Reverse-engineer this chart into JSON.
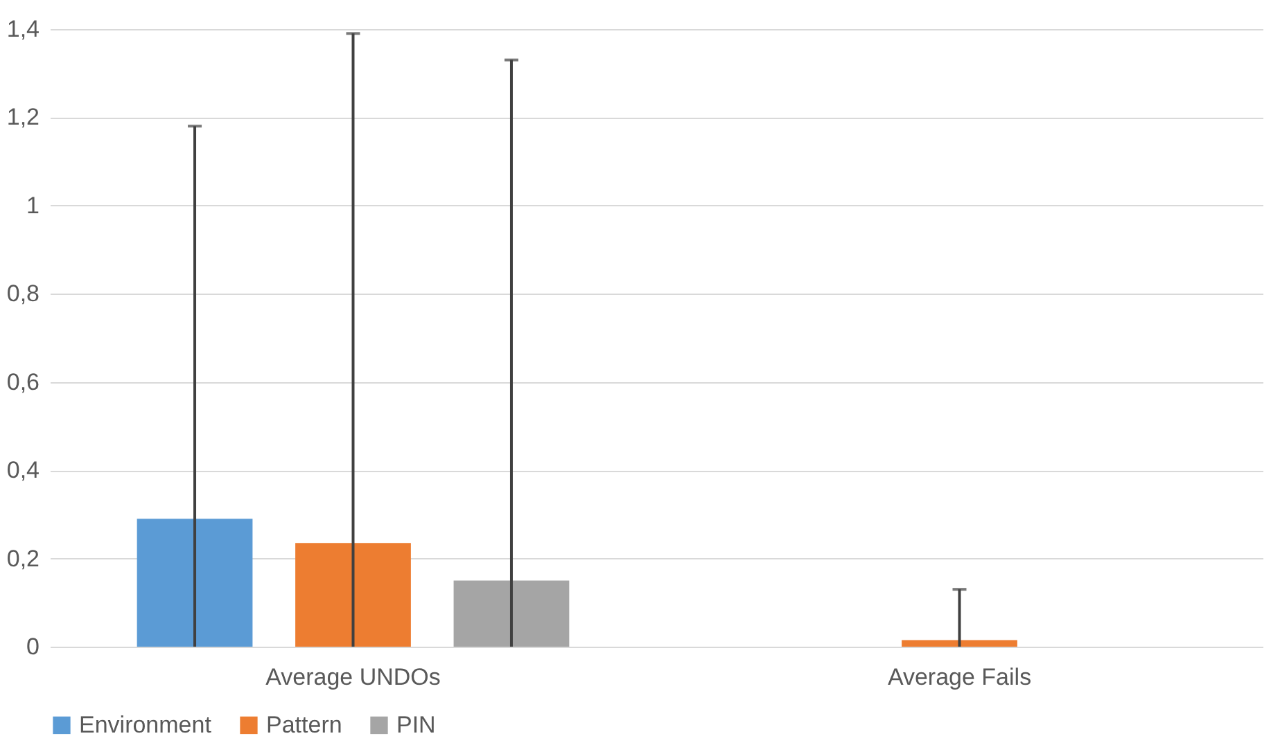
{
  "chart_data": {
    "type": "bar",
    "categories": [
      "Average UNDOs",
      "Average Fails"
    ],
    "series": [
      {
        "name": "Environment",
        "color": "#5b9bd5",
        "values": [
          0.29,
          0
        ],
        "errors": [
          [
            0,
            1.18
          ],
          null
        ]
      },
      {
        "name": "Pattern",
        "color": "#ed7d31",
        "values": [
          0.235,
          0.015
        ],
        "errors": [
          [
            0,
            1.39
          ],
          [
            0,
            0.13
          ]
        ]
      },
      {
        "name": "PIN",
        "color": "#a5a5a5",
        "values": [
          0.15,
          0
        ],
        "errors": [
          [
            0,
            1.33
          ],
          null
        ]
      }
    ],
    "ylim": [
      0,
      1.4
    ],
    "yticks": [
      0,
      {
        "value": 0.2,
        "label": "0,2"
      },
      {
        "value": 0.4,
        "label": "0,4"
      },
      {
        "value": 0.6,
        "label": "0,6"
      },
      {
        "value": 0.8,
        "label": "0,8"
      },
      1,
      {
        "value": 1.2,
        "label": "1,2"
      },
      {
        "value": 1.4,
        "label": "1,4"
      }
    ],
    "grid": "y",
    "legend": "bottom"
  }
}
